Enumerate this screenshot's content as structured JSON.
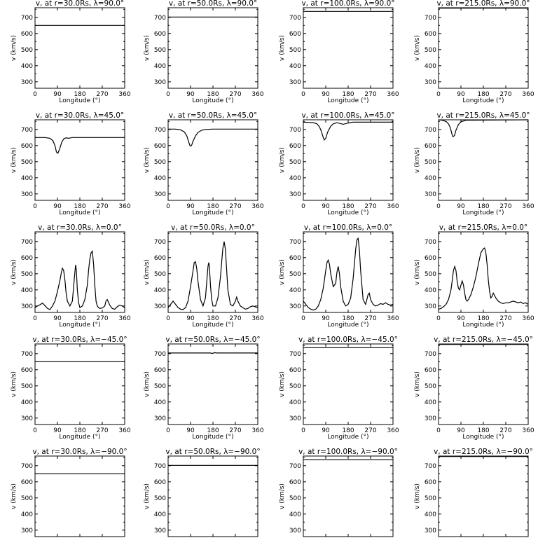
{
  "chart_data": {
    "type": "line",
    "xlabel": "Longitude (°)",
    "ylabel": "v (km/s)",
    "xlim": [
      0,
      360
    ],
    "ylim": [
      260,
      760
    ],
    "xticks": [
      "0",
      "90",
      "180",
      "270",
      "360"
    ],
    "yticks": [
      "300",
      "400",
      "500",
      "600",
      "700"
    ],
    "grid": false,
    "colors": {
      "line": "#000000",
      "axes": "#000000",
      "background": "#ffffff"
    },
    "panels": [
      {
        "title": "v, at r=30.0Rs, λ=90.0°",
        "x": [
          0,
          360
        ],
        "y": [
          650,
          650
        ]
      },
      {
        "title": "v, at r=50.0Rs, λ=90.0°",
        "x": [
          0,
          360
        ],
        "y": [
          702,
          702
        ]
      },
      {
        "title": "v, at r=100.0Rs, λ=90.0°",
        "x": [
          0,
          360
        ],
        "y": [
          737,
          737
        ]
      },
      {
        "title": "v, at r=215.0Rs, λ=90.0°",
        "x": [
          0,
          360
        ],
        "y": [
          757,
          757
        ]
      },
      {
        "title": "v, at r=30.0Rs, λ=45.0°",
        "x": [
          0,
          40,
          60,
          72,
          80,
          86,
          92,
          100,
          108,
          116,
          124,
          135,
          150,
          180,
          360
        ],
        "y": [
          650,
          650,
          645,
          630,
          600,
          560,
          552,
          585,
          625,
          642,
          648,
          645,
          650,
          650,
          650
        ]
      },
      {
        "title": "v, at r=50.0Rs, λ=45.0°",
        "x": [
          0,
          30,
          50,
          65,
          75,
          82,
          88,
          94,
          100,
          110,
          120,
          135,
          150,
          180,
          360
        ],
        "y": [
          702,
          702,
          698,
          685,
          660,
          625,
          598,
          600,
          628,
          660,
          682,
          695,
          700,
          702,
          702
        ]
      },
      {
        "title": "v, at r=100.0Rs, λ=45.0°",
        "x": [
          0,
          20,
          40,
          55,
          65,
          72,
          78,
          84,
          90,
          98,
          110,
          120,
          135,
          160,
          180,
          200,
          360
        ],
        "y": [
          745,
          744,
          742,
          735,
          715,
          690,
          660,
          635,
          645,
          685,
          720,
          735,
          742,
          732,
          740,
          745,
          745
        ]
      },
      {
        "title": "v, at r=215.0Rs, λ=45.0°",
        "x": [
          0,
          15,
          30,
          40,
          46,
          50,
          54,
          58,
          64,
          70,
          80,
          90,
          110,
          360
        ],
        "y": [
          760,
          757,
          750,
          735,
          715,
          695,
          670,
          655,
          662,
          695,
          730,
          748,
          757,
          760
        ]
      },
      {
        "title": "v, at r=30.0Rs, λ=0.0°",
        "x": [
          0,
          10,
          20,
          30,
          40,
          50,
          60,
          70,
          80,
          90,
          100,
          105,
          110,
          115,
          120,
          125,
          130,
          140,
          150,
          155,
          160,
          163,
          166,
          170,
          175,
          180,
          190,
          200,
          210,
          215,
          220,
          225,
          230,
          235,
          240,
          245,
          250,
          255,
          260,
          270,
          280,
          285,
          290,
          300,
          310,
          320,
          330,
          340,
          350,
          360
        ],
        "y": [
          290,
          300,
          308,
          318,
          302,
          285,
          278,
          300,
          330,
          390,
          460,
          500,
          535,
          520,
          460,
          380,
          330,
          300,
          330,
          420,
          510,
          555,
          520,
          400,
          320,
          290,
          300,
          340,
          430,
          520,
          590,
          630,
          640,
          560,
          430,
          330,
          300,
          290,
          285,
          288,
          300,
          330,
          340,
          305,
          285,
          280,
          295,
          305,
          300,
          290
        ]
      },
      {
        "title": "v, at r=50.0Rs, λ=0.0°",
        "x": [
          0,
          10,
          20,
          30,
          40,
          50,
          60,
          70,
          80,
          90,
          100,
          105,
          110,
          115,
          120,
          130,
          140,
          150,
          155,
          160,
          163,
          166,
          170,
          175,
          180,
          190,
          200,
          210,
          215,
          220,
          225,
          230,
          235,
          240,
          250,
          260,
          270,
          275,
          280,
          290,
          300,
          310,
          320,
          330,
          340,
          350,
          360
        ],
        "y": [
          290,
          310,
          330,
          310,
          290,
          280,
          278,
          290,
          330,
          420,
          520,
          570,
          575,
          530,
          450,
          340,
          300,
          350,
          450,
          545,
          570,
          540,
          430,
          340,
          300,
          300,
          350,
          480,
          570,
          660,
          700,
          650,
          520,
          400,
          310,
          300,
          330,
          355,
          330,
          300,
          290,
          280,
          285,
          295,
          300,
          295,
          290
        ]
      },
      {
        "title": "v, at r=100.0Rs, λ=0.0°",
        "x": [
          0,
          10,
          20,
          30,
          40,
          50,
          60,
          70,
          80,
          90,
          95,
          100,
          105,
          110,
          120,
          130,
          135,
          140,
          145,
          150,
          160,
          170,
          180,
          190,
          200,
          205,
          210,
          215,
          220,
          225,
          230,
          240,
          250,
          255,
          260,
          265,
          270,
          280,
          290,
          300,
          310,
          320,
          330,
          340,
          350,
          360
        ],
        "y": [
          330,
          310,
          290,
          280,
          275,
          280,
          300,
          340,
          410,
          520,
          570,
          585,
          560,
          500,
          420,
          440,
          510,
          545,
          500,
          420,
          330,
          300,
          310,
          350,
          470,
          560,
          650,
          710,
          720,
          650,
          520,
          340,
          310,
          340,
          370,
          380,
          340,
          310,
          300,
          305,
          315,
          310,
          320,
          310,
          305,
          310
        ]
      },
      {
        "title": "v, at r=215.0Rs, λ=0.0°",
        "x": [
          0,
          10,
          20,
          30,
          40,
          50,
          55,
          60,
          65,
          70,
          75,
          80,
          85,
          90,
          95,
          100,
          105,
          110,
          115,
          120,
          130,
          140,
          150,
          160,
          170,
          180,
          185,
          190,
          195,
          200,
          205,
          210,
          215,
          220,
          230,
          240,
          250,
          260,
          270,
          280,
          290,
          300,
          310,
          320,
          330,
          340,
          350,
          360
        ],
        "y": [
          280,
          285,
          295,
          310,
          340,
          400,
          460,
          520,
          545,
          520,
          450,
          410,
          400,
          430,
          455,
          430,
          380,
          340,
          330,
          340,
          370,
          420,
          480,
          560,
          630,
          655,
          660,
          630,
          560,
          460,
          390,
          350,
          360,
          380,
          350,
          330,
          320,
          315,
          320,
          320,
          325,
          330,
          325,
          320,
          325,
          315,
          320,
          310
        ]
      },
      {
        "title": "v, at r=30.0Rs, λ=−45.0°",
        "x": [
          0,
          360
        ],
        "y": [
          650,
          650
        ]
      },
      {
        "title": "v, at r=50.0Rs, λ=−45.0°",
        "x": [
          0,
          170,
          178,
          186,
          194,
          360
        ],
        "y": [
          704,
          704,
          701,
          706,
          704,
          704
        ]
      },
      {
        "title": "v, at r=100.0Rs, λ=−45.0°",
        "x": [
          0,
          360
        ],
        "y": [
          737,
          737
        ]
      },
      {
        "title": "v, at r=215.0Rs, λ=−45.0°",
        "x": [
          0,
          360
        ],
        "y": [
          757,
          757
        ]
      },
      {
        "title": "v, at r=30.0Rs, λ=−90.0°",
        "x": [
          0,
          360
        ],
        "y": [
          650,
          650
        ]
      },
      {
        "title": "v, at r=50.0Rs, λ=−90.0°",
        "x": [
          0,
          360
        ],
        "y": [
          702,
          702
        ]
      },
      {
        "title": "v, at r=100.0Rs, λ=−90.0°",
        "x": [
          0,
          360
        ],
        "y": [
          737,
          737
        ]
      },
      {
        "title": "v, at r=215.0Rs, λ=−90.0°",
        "x": [
          0,
          360
        ],
        "y": [
          757,
          757
        ]
      }
    ]
  }
}
